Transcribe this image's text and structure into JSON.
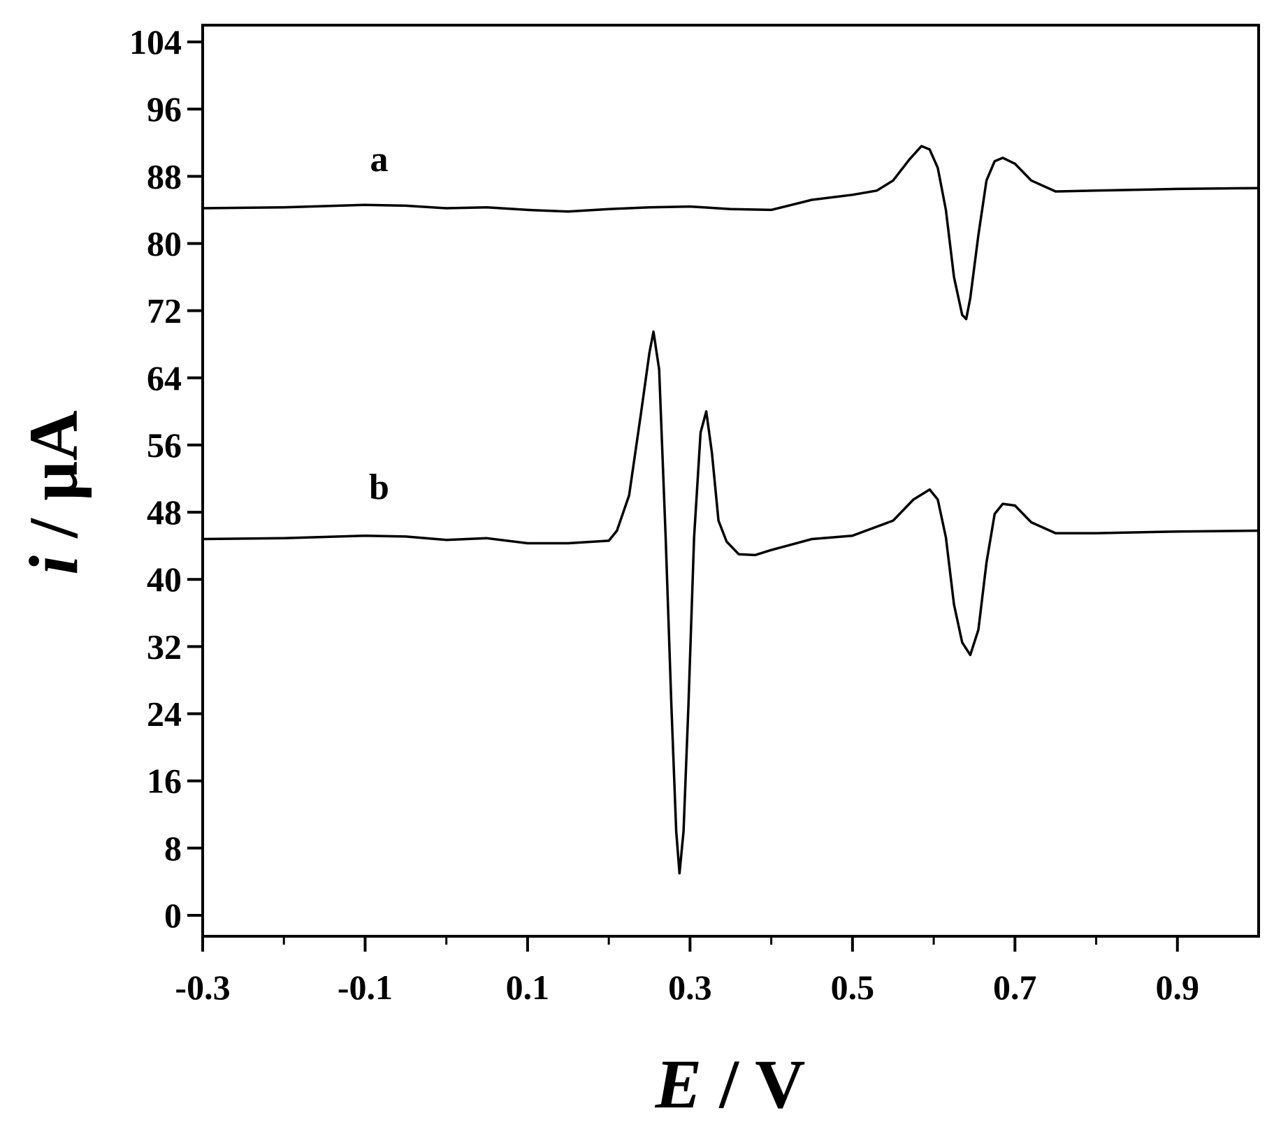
{
  "chart_data": {
    "type": "line",
    "title": "",
    "xlabel": {
      "symbol": "E",
      "unit": " / V"
    },
    "ylabel": {
      "symbol": "i",
      "unit": " / µA"
    },
    "xlim": [
      -0.3,
      1.0
    ],
    "ylim": [
      -2.5,
      106
    ],
    "x_ticks": [
      -0.3,
      -0.1,
      0.1,
      0.3,
      0.5,
      0.7,
      0.9
    ],
    "x_tick_labels": [
      "-0.3",
      "-0.1",
      "0.1",
      "0.3",
      "0.5",
      "0.7",
      "0.9"
    ],
    "y_ticks": [
      0,
      8,
      16,
      24,
      32,
      40,
      48,
      56,
      64,
      72,
      80,
      88,
      96,
      104
    ],
    "y_tick_labels": [
      "0",
      "8",
      "16",
      "24",
      "32",
      "40",
      "48",
      "56",
      "64",
      "72",
      "80",
      "88",
      "96",
      "104"
    ],
    "grid": false,
    "colors": {
      "line": "#000000",
      "axis": "#000000"
    },
    "series": [
      {
        "name": "a",
        "label_at": [
          -0.1,
          88.6
        ],
        "x": [
          -0.3,
          -0.2,
          -0.1,
          -0.05,
          0.0,
          0.05,
          0.1,
          0.15,
          0.2,
          0.25,
          0.3,
          0.35,
          0.4,
          0.45,
          0.5,
          0.53,
          0.55,
          0.57,
          0.585,
          0.595,
          0.605,
          0.615,
          0.625,
          0.635,
          0.64,
          0.645,
          0.655,
          0.665,
          0.675,
          0.685,
          0.7,
          0.72,
          0.75,
          0.8,
          0.9,
          1.0
        ],
        "y": [
          84.2,
          84.3,
          84.6,
          84.5,
          84.2,
          84.3,
          84.0,
          83.8,
          84.1,
          84.3,
          84.4,
          84.1,
          84.0,
          85.2,
          85.8,
          86.3,
          87.5,
          90.0,
          91.6,
          91.2,
          89.0,
          84.0,
          76.0,
          71.5,
          71.0,
          73.5,
          81.0,
          87.5,
          89.8,
          90.2,
          89.5,
          87.5,
          86.2,
          86.3,
          86.5,
          86.6
        ]
      },
      {
        "name": "b",
        "label_at": [
          -0.1,
          49.6
        ],
        "x": [
          -0.3,
          -0.2,
          -0.1,
          -0.05,
          0.0,
          0.05,
          0.1,
          0.15,
          0.2,
          0.21,
          0.225,
          0.24,
          0.25,
          0.255,
          0.262,
          0.27,
          0.277,
          0.283,
          0.287,
          0.292,
          0.298,
          0.305,
          0.313,
          0.32,
          0.327,
          0.335,
          0.345,
          0.36,
          0.38,
          0.4,
          0.45,
          0.5,
          0.55,
          0.575,
          0.595,
          0.605,
          0.615,
          0.625,
          0.635,
          0.645,
          0.655,
          0.665,
          0.675,
          0.685,
          0.7,
          0.72,
          0.75,
          0.8,
          0.9,
          1.0
        ],
        "y": [
          44.8,
          44.9,
          45.2,
          45.1,
          44.7,
          44.9,
          44.3,
          44.3,
          44.6,
          45.8,
          50.0,
          60.0,
          67.0,
          69.5,
          65.0,
          45.0,
          25.0,
          10.0,
          5.0,
          10.0,
          25.0,
          45.0,
          57.5,
          60.0,
          55.0,
          47.0,
          44.5,
          43.0,
          42.9,
          43.5,
          44.8,
          45.2,
          47.0,
          49.5,
          50.7,
          49.5,
          45.0,
          37.0,
          32.5,
          31.0,
          34.0,
          42.0,
          47.8,
          49.0,
          48.8,
          46.8,
          45.5,
          45.5,
          45.7,
          45.8
        ]
      }
    ]
  }
}
